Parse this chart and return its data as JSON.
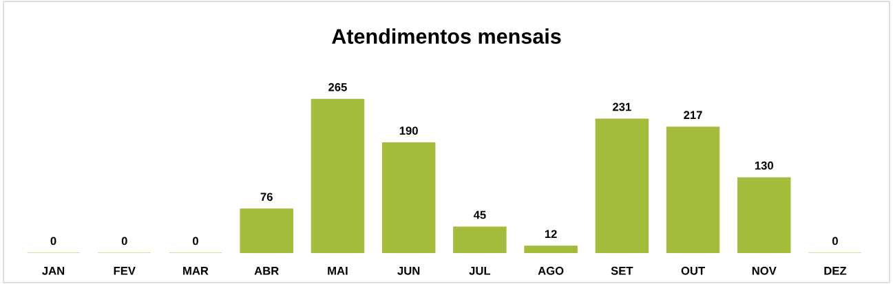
{
  "chart_data": {
    "type": "bar",
    "title": "Atendimentos mensais",
    "categories": [
      "JAN",
      "FEV",
      "MAR",
      "ABR",
      "MAI",
      "JUN",
      "JUL",
      "AGO",
      "SET",
      "OUT",
      "NOV",
      "DEZ"
    ],
    "values": [
      0,
      0,
      0,
      76,
      265,
      190,
      45,
      12,
      231,
      217,
      130,
      0
    ],
    "color": "#a4bc3c",
    "data_labels": true,
    "grid": false,
    "legend": false
  }
}
